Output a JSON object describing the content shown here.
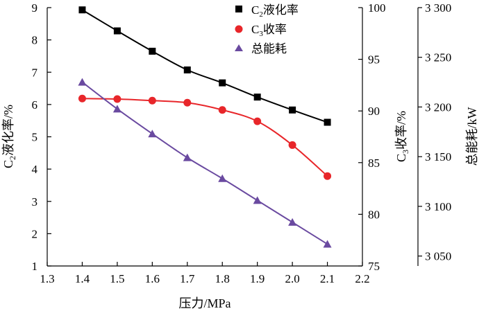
{
  "chart_data": {
    "type": "line",
    "x": [
      1.4,
      1.5,
      1.6,
      1.7,
      1.8,
      1.9,
      2.0,
      2.1
    ],
    "xlabel": "压力/MPa",
    "xlim": [
      1.3,
      2.2
    ],
    "xticks": [
      "1.3",
      "1.4",
      "1.5",
      "1.6",
      "1.7",
      "1.8",
      "1.9",
      "2.0",
      "2.1",
      "2.2"
    ],
    "axes": {
      "left": {
        "label_main": "C",
        "label_sub": "2",
        "label_rest": "液化率/%",
        "range": [
          1,
          9
        ],
        "ticks": [
          "1",
          "2",
          "3",
          "4",
          "5",
          "6",
          "7",
          "8",
          "9"
        ]
      },
      "right1": {
        "label_main": "C",
        "label_sub": "3",
        "label_rest": "收率/%",
        "range": [
          75,
          100
        ],
        "ticks": [
          "75",
          "80",
          "85",
          "90",
          "95",
          "100"
        ]
      },
      "right2": {
        "label": "总能耗/kW",
        "range": [
          3040,
          3300
        ],
        "ticks": [
          "3 050",
          "3 100",
          "3 150",
          "3 200",
          "3 250",
          "3 300"
        ]
      }
    },
    "series": [
      {
        "name_main": "C",
        "name_sub": "2",
        "name_rest": "液化率",
        "axis": "left",
        "marker": "square",
        "color": "#000000",
        "values": [
          8.93,
          8.28,
          7.65,
          7.07,
          6.67,
          6.23,
          5.83,
          5.45
        ]
      },
      {
        "name_main": "C",
        "name_sub": "3",
        "name_rest": "收率",
        "axis": "right1",
        "marker": "circle",
        "color": "#e8262a",
        "values": [
          91.2,
          91.15,
          91.0,
          90.8,
          90.1,
          89.0,
          86.7,
          83.7
        ]
      },
      {
        "name": "总能耗",
        "axis": "right2",
        "marker": "triangle",
        "color": "#6a4aa0",
        "values": [
          3225,
          3198,
          3173,
          3149,
          3128,
          3106,
          3084,
          3062
        ]
      }
    ],
    "grid": false,
    "legend": "top-right"
  }
}
